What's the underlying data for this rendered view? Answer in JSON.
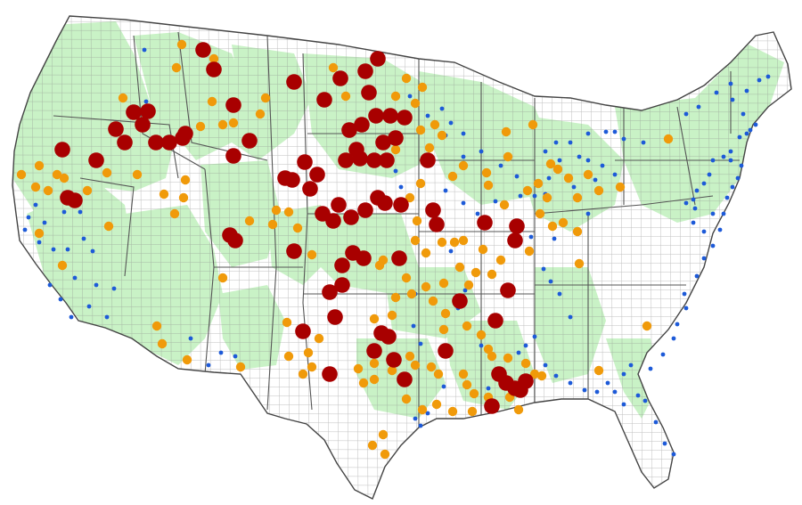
{
  "map": {
    "subject": "contiguous-united-states-counties",
    "colors": {
      "background": "#ffffff",
      "land_default": "#ffffff",
      "land_highlight": "#c9f2c6",
      "county_border": "#8c8c8c",
      "state_border": "#555555",
      "large_marker": "#a80000",
      "medium_marker": "#f09a0a",
      "small_marker": "#1d5ad8"
    }
  }
}
